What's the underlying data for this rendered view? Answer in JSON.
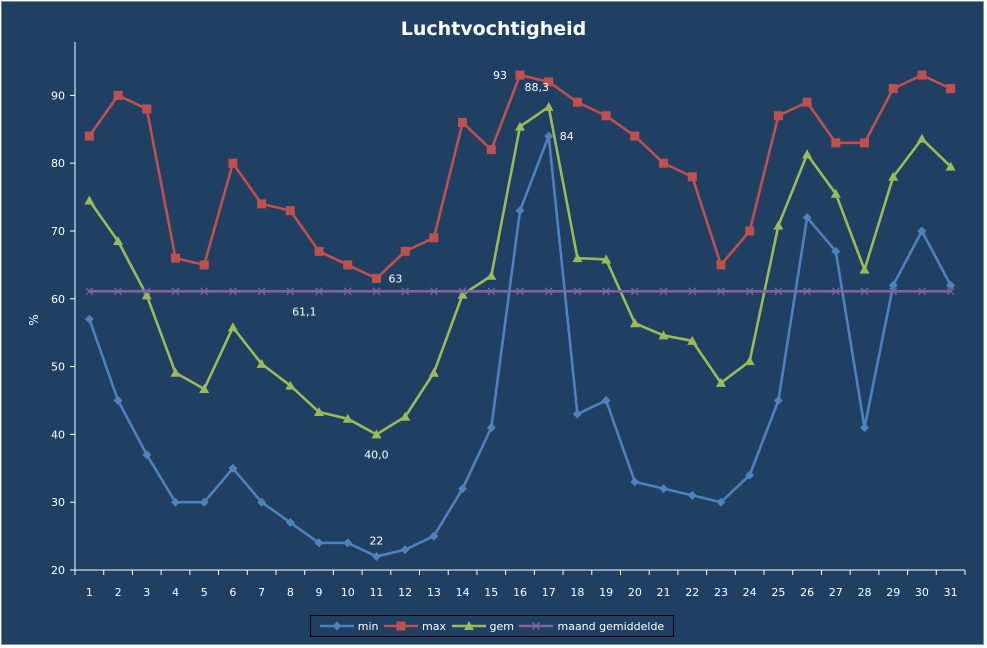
{
  "chart_data": {
    "type": "line",
    "title": "Luchtvochtigheid",
    "xlabel": "",
    "ylabel": "%",
    "ylim": [
      20,
      95
    ],
    "yticks": [
      20,
      30,
      40,
      50,
      60,
      70,
      80,
      90
    ],
    "categories": [
      "1",
      "2",
      "3",
      "4",
      "5",
      "6",
      "7",
      "8",
      "9",
      "10",
      "11",
      "12",
      "13",
      "14",
      "15",
      "16",
      "17",
      "18",
      "19",
      "20",
      "21",
      "22",
      "23",
      "24",
      "25",
      "26",
      "27",
      "28",
      "29",
      "30",
      "31"
    ],
    "grid": false,
    "legend_position": "bottom",
    "series": [
      {
        "name": "min",
        "color": "#4f81bd",
        "marker": "diamond",
        "values": [
          57,
          45,
          37,
          30,
          30,
          35,
          30,
          27,
          24,
          24,
          22,
          23,
          25,
          32,
          41,
          73,
          84,
          43,
          45,
          33,
          32,
          31,
          30,
          34,
          45,
          72,
          67,
          41,
          62,
          70,
          62
        ]
      },
      {
        "name": "max",
        "color": "#c0504d",
        "marker": "square",
        "values": [
          84,
          90,
          88,
          66,
          65,
          80,
          74,
          73,
          67,
          65,
          63,
          67,
          69,
          86,
          82,
          93,
          92,
          89,
          87,
          84,
          80,
          78,
          65,
          70,
          87,
          89,
          83,
          83,
          91,
          93,
          91
        ]
      },
      {
        "name": "gem",
        "color": "#9bbb59",
        "marker": "triangle",
        "values": [
          74.5,
          68.5,
          60.5,
          49.1,
          46.7,
          55.8,
          50.4,
          47.2,
          43.3,
          42.3,
          40.0,
          42.6,
          49.1,
          60.6,
          63.4,
          85.4,
          88.3,
          66.0,
          65.8,
          56.4,
          54.6,
          53.8,
          47.6,
          50.8,
          70.8,
          81.3,
          75.5,
          64.3,
          78.0,
          83.6,
          79.5
        ]
      },
      {
        "name": "maand gemiddelde",
        "color": "#8064a2",
        "marker": "x",
        "values": [
          61.1,
          61.1,
          61.1,
          61.1,
          61.1,
          61.1,
          61.1,
          61.1,
          61.1,
          61.1,
          61.1,
          61.1,
          61.1,
          61.1,
          61.1,
          61.1,
          61.1,
          61.1,
          61.1,
          61.1,
          61.1,
          61.1,
          61.1,
          61.1,
          61.1,
          61.1,
          61.1,
          61.1,
          61.1,
          61.1,
          61.1
        ]
      }
    ],
    "annotations": [
      {
        "series": "max",
        "category": "16",
        "text": "93"
      },
      {
        "series": "gem",
        "category": "17",
        "text": "88,3"
      },
      {
        "series": "min",
        "category": "17",
        "text": "84"
      },
      {
        "series": "max",
        "category": "11",
        "text": "63"
      },
      {
        "series": "maand gemiddelde",
        "category": "8",
        "text": "61,1"
      },
      {
        "series": "gem",
        "category": "11",
        "text": "40,0"
      },
      {
        "series": "min",
        "category": "11",
        "text": "22"
      }
    ]
  }
}
